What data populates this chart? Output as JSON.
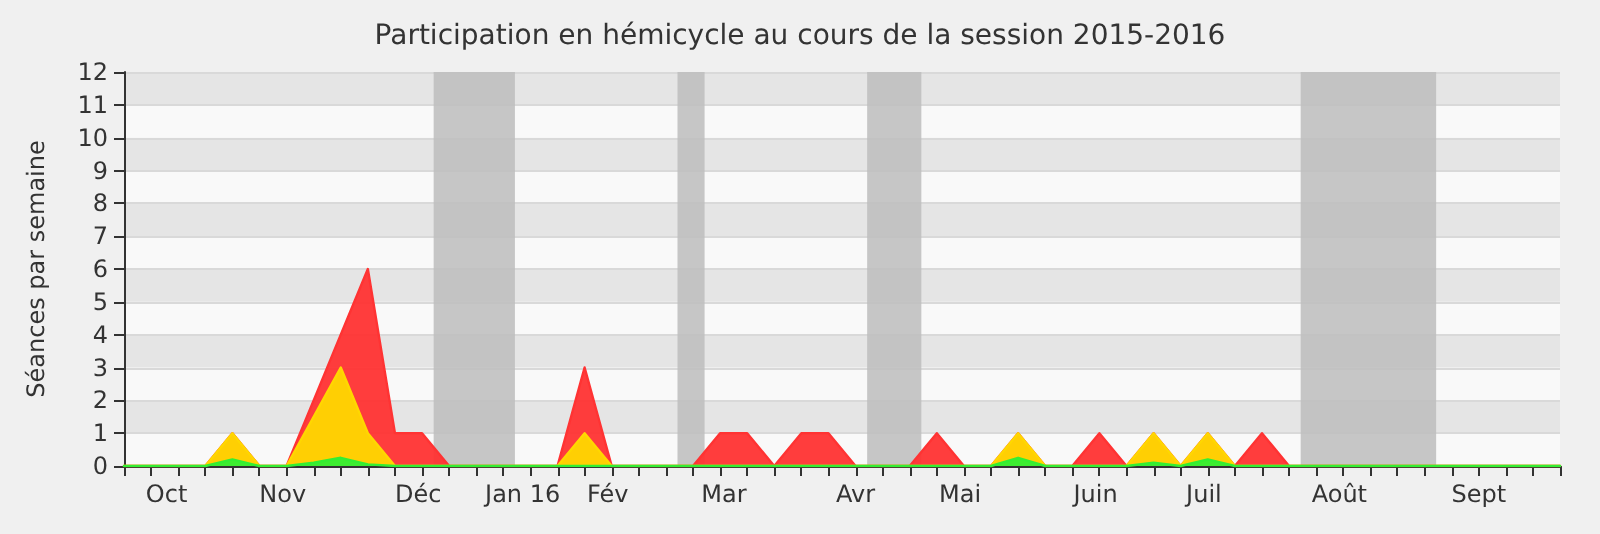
{
  "chart_data": {
    "type": "area",
    "title": "Participation en hémicycle au cours de la session 2015-2016",
    "ylabel": "Séances par semaine",
    "x": [
      "2015-09-28",
      "2015-10-05",
      "2015-10-12",
      "2015-10-19",
      "2015-10-26",
      "2015-11-02",
      "2015-11-09",
      "2015-11-16",
      "2015-11-23",
      "2015-11-30",
      "2015-12-07",
      "2015-12-14",
      "2015-12-21",
      "2015-12-28",
      "2016-01-04",
      "2016-01-11",
      "2016-01-18",
      "2016-01-25",
      "2016-02-01",
      "2016-02-08",
      "2016-02-15",
      "2016-02-22",
      "2016-02-29",
      "2016-03-07",
      "2016-03-14",
      "2016-03-21",
      "2016-03-28",
      "2016-04-04",
      "2016-04-11",
      "2016-04-18",
      "2016-04-25",
      "2016-05-02",
      "2016-05-09",
      "2016-05-16",
      "2016-05-23",
      "2016-05-30",
      "2016-06-06",
      "2016-06-13",
      "2016-06-20",
      "2016-06-27",
      "2016-07-04",
      "2016-07-11",
      "2016-07-18",
      "2016-07-25",
      "2016-08-01",
      "2016-08-08",
      "2016-08-15",
      "2016-08-22",
      "2016-08-29",
      "2016-09-05",
      "2016-09-12",
      "2016-09-19",
      "2016-09-26",
      "2016-10-03"
    ],
    "series": [
      {
        "color": "#ff3333",
        "values": [
          0,
          0,
          0,
          0,
          1,
          0,
          0,
          2,
          4,
          6,
          1,
          1,
          0,
          0,
          0,
          0,
          0,
          3,
          0,
          0,
          0,
          0,
          1,
          1,
          0,
          1,
          1,
          0,
          0,
          0,
          1,
          0,
          0,
          1,
          0,
          0,
          1,
          0,
          1,
          0,
          1,
          0,
          1,
          0,
          0,
          0,
          0,
          0,
          0,
          0,
          0,
          0,
          0,
          0
        ]
      },
      {
        "color": "#ffd700",
        "values": [
          0,
          0,
          0,
          0,
          1,
          0,
          0,
          1.5,
          3,
          1,
          0,
          0,
          0,
          0,
          0,
          0,
          0,
          1,
          0,
          0,
          0,
          0,
          0,
          0,
          0,
          0,
          0,
          0,
          0,
          0,
          0,
          0,
          0,
          1,
          0,
          0,
          0,
          0,
          1,
          0,
          1,
          0,
          0,
          0,
          0,
          0,
          0,
          0,
          0,
          0,
          0,
          0,
          0,
          0
        ]
      },
      {
        "color": "#33ee33",
        "values": [
          0,
          0,
          0,
          0,
          0.2,
          0,
          0,
          0.1,
          0.25,
          0.05,
          0,
          0,
          0,
          0,
          0,
          0,
          0,
          0,
          0,
          0,
          0,
          0,
          0,
          0,
          0,
          0,
          0,
          0,
          0,
          0,
          0,
          0,
          0,
          0.25,
          0,
          0,
          0,
          0,
          0.1,
          0,
          0.2,
          0,
          0,
          0,
          0,
          0,
          0,
          0,
          0,
          0,
          0,
          0,
          0,
          0
        ]
      }
    ],
    "xlim": [
      "2015-09-28",
      "2016-10-03"
    ],
    "xticks": [
      {
        "value": "2015-09-28",
        "label": null
      },
      {
        "value": "2015-10-05",
        "label": null
      },
      {
        "value": "2015-10-12",
        "label": null
      },
      {
        "value": "2015-10-19",
        "label": null
      },
      {
        "value": "2015-10-26",
        "label": null
      },
      {
        "value": "2015-11-02",
        "label": null
      },
      {
        "value": "2015-11-09",
        "label": null
      },
      {
        "value": "2015-11-16",
        "label": null
      },
      {
        "value": "2015-11-23",
        "label": null
      },
      {
        "value": "2015-11-30",
        "label": null
      },
      {
        "value": "2015-12-07",
        "label": null
      },
      {
        "value": "2015-12-14",
        "label": null
      },
      {
        "value": "2015-12-21",
        "label": null
      },
      {
        "value": "2015-12-28",
        "label": null
      },
      {
        "value": "2016-01-04",
        "label": null
      },
      {
        "value": "2016-01-11",
        "label": null
      },
      {
        "value": "2016-01-18",
        "label": null
      },
      {
        "value": "2016-01-25",
        "label": null
      },
      {
        "value": "2016-02-01",
        "label": null
      },
      {
        "value": "2016-02-08",
        "label": null
      },
      {
        "value": "2016-02-15",
        "label": null
      },
      {
        "value": "2016-02-22",
        "label": null
      },
      {
        "value": "2016-02-29",
        "label": null
      },
      {
        "value": "2016-03-07",
        "label": null
      },
      {
        "value": "2016-03-14",
        "label": null
      },
      {
        "value": "2016-03-21",
        "label": null
      },
      {
        "value": "2016-03-28",
        "label": null
      },
      {
        "value": "2016-04-04",
        "label": null
      },
      {
        "value": "2016-04-11",
        "label": null
      },
      {
        "value": "2016-04-18",
        "label": null
      },
      {
        "value": "2016-04-25",
        "label": null
      },
      {
        "value": "2016-05-02",
        "label": null
      },
      {
        "value": "2016-05-09",
        "label": null
      },
      {
        "value": "2016-05-16",
        "label": null
      },
      {
        "value": "2016-05-23",
        "label": null
      },
      {
        "value": "2016-05-30",
        "label": null
      },
      {
        "value": "2016-06-06",
        "label": null
      },
      {
        "value": "2016-06-13",
        "label": null
      },
      {
        "value": "2016-06-20",
        "label": null
      },
      {
        "value": "2016-06-27",
        "label": null
      },
      {
        "value": "2016-07-04",
        "label": null
      },
      {
        "value": "2016-07-11",
        "label": null
      },
      {
        "value": "2016-07-18",
        "label": null
      },
      {
        "value": "2016-07-25",
        "label": null
      },
      {
        "value": "2016-08-01",
        "label": null
      },
      {
        "value": "2016-08-08",
        "label": null
      },
      {
        "value": "2016-08-15",
        "label": null
      },
      {
        "value": "2016-08-22",
        "label": null
      },
      {
        "value": "2016-08-29",
        "label": null
      },
      {
        "value": "2016-09-05",
        "label": null
      },
      {
        "value": "2016-09-12",
        "label": null
      },
      {
        "value": "2016-09-19",
        "label": null
      },
      {
        "value": "2016-09-26",
        "label": null
      },
      {
        "value": "2016-10-03",
        "label": null
      },
      {
        "value": "2015-10-09",
        "label": "Oct"
      },
      {
        "value": "2015-11-08",
        "label": "Nov"
      },
      {
        "value": "2015-12-13",
        "label": "Déc"
      },
      {
        "value": "2016-01-09",
        "label": "Jan 16"
      },
      {
        "value": "2016-01-31",
        "label": "Fév"
      },
      {
        "value": "2016-03-01",
        "label": "Mar"
      },
      {
        "value": "2016-04-04",
        "label": "Avr"
      },
      {
        "value": "2016-05-01",
        "label": "Mai"
      },
      {
        "value": "2016-06-05",
        "label": "Juin"
      },
      {
        "value": "2016-07-03",
        "label": "Juil"
      },
      {
        "value": "2016-08-07",
        "label": "Août"
      },
      {
        "value": "2016-09-12",
        "label": "Sept"
      }
    ],
    "ylim": [
      0,
      12
    ],
    "yticks": [
      0,
      1,
      2,
      3,
      4,
      5,
      6,
      7,
      8,
      9,
      10,
      11,
      12
    ],
    "bands": [
      {
        "axis": "x",
        "from": "2015-12-17",
        "to": "2016-01-07",
        "color": "#bdbdbd"
      },
      {
        "axis": "x",
        "from": "2016-02-18",
        "to": "2016-02-25",
        "color": "#bdbdbd"
      },
      {
        "axis": "x",
        "from": "2016-04-07",
        "to": "2016-04-21",
        "color": "#bdbdbd"
      },
      {
        "axis": "x",
        "from": "2016-07-28",
        "to": "2016-09-01",
        "color": "#bdbdbd"
      }
    ],
    "grid": "y",
    "marker": "none",
    "line_style": "solid"
  }
}
